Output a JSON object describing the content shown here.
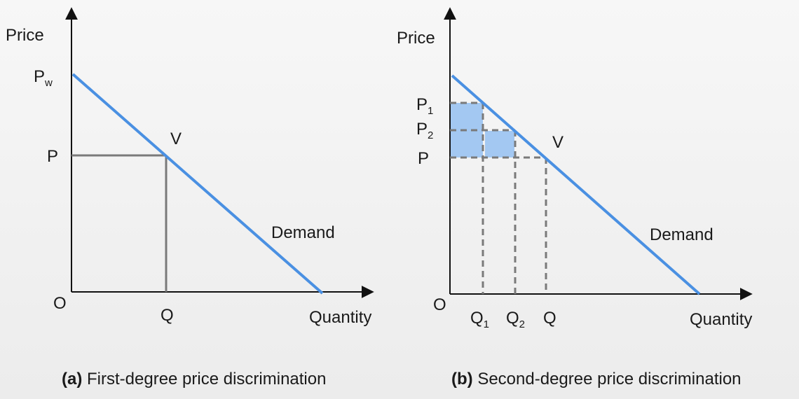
{
  "colors": {
    "demand": "#4a90e2",
    "area_fill": "#a3c8f2",
    "axis": "#111111",
    "guide": "#7a7a7a"
  },
  "panel_a": {
    "y_axis_label": "Price",
    "x_axis_label": "Quantity",
    "origin_label": "O",
    "max_price_label": "P",
    "max_price_sub": "w",
    "price_label": "P",
    "quantity_label": "Q",
    "point_label": "V",
    "curve_label": "Demand",
    "caption_tag": "(a)",
    "caption_text": " First-degree price discrimination"
  },
  "panel_b": {
    "y_axis_label": "Price",
    "x_axis_label": "Quantity",
    "origin_label": "O",
    "price1_label": "P",
    "price1_sub": "1",
    "price2_label": "P",
    "price2_sub": "2",
    "price_label": "P",
    "q1_label": "Q",
    "q1_sub": "1",
    "q2_label": "Q",
    "q2_sub": "2",
    "quantity_label": "Q",
    "point_label": "V",
    "curve_label": "Demand",
    "caption_tag": "(b)",
    "caption_text": " Second-degree price discrimination"
  }
}
